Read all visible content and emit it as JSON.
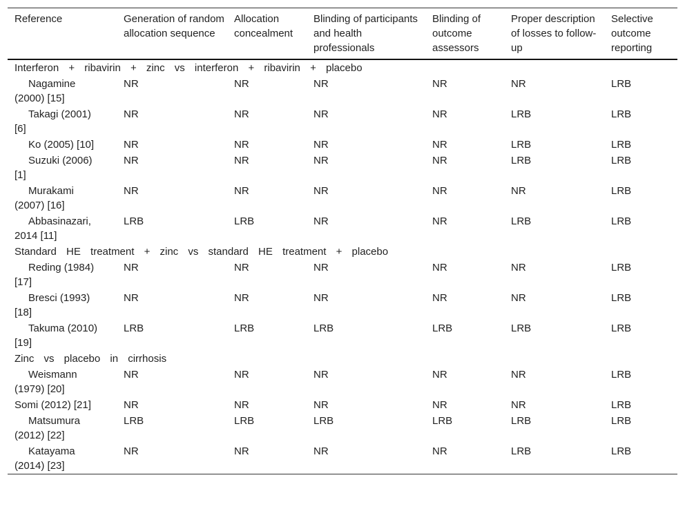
{
  "table": {
    "header": [
      "Reference",
      "Generation of random allocation sequence",
      "Allocation concealment",
      "Blinding of participants and health professionals",
      "Blinding of outcome assessors",
      "Proper description of losses to follow-up",
      "Selective outcome reporting"
    ],
    "groups": [
      {
        "title": "Interferon + ribavirin + zinc vs interferon + ribavirin + placebo",
        "rows": [
          [
            "Nagamine (2000) [15]",
            "NR",
            "NR",
            "NR",
            "NR",
            "NR",
            "LRB"
          ],
          [
            "Takagi (2001) [6]",
            "NR",
            "NR",
            "NR",
            "NR",
            "LRB",
            "LRB"
          ],
          [
            "Ko (2005) [10]",
            "NR",
            "NR",
            "NR",
            "NR",
            "LRB",
            "LRB"
          ],
          [
            "Suzuki (2006) [1]",
            "NR",
            "NR",
            "NR",
            "NR",
            "LRB",
            "LRB"
          ],
          [
            "Murakami (2007) [16]",
            "NR",
            "NR",
            "NR",
            "NR",
            "NR",
            "LRB"
          ],
          [
            "Abbasinazari, 2014 [11]",
            "LRB",
            "LRB",
            "NR",
            "NR",
            "LRB",
            "LRB"
          ]
        ]
      },
      {
        "title": "Standard HE treatment + zinc vs standard HE treatment + placebo",
        "rows": [
          [
            "Reding (1984) [17]",
            "NR",
            "NR",
            "NR",
            "NR",
            "NR",
            "LRB"
          ],
          [
            "Bresci (1993) [18]",
            "NR",
            "NR",
            "NR",
            "NR",
            "NR",
            "LRB"
          ],
          [
            "Takuma (2010) [19]",
            "LRB",
            "LRB",
            "LRB",
            "LRB",
            "LRB",
            "LRB"
          ]
        ]
      },
      {
        "title": "Zinc vs placebo in cirrhosis",
        "rows": [
          [
            "Weismann (1979) [20]",
            "NR",
            "NR",
            "NR",
            "NR",
            "NR",
            "LRB"
          ],
          [
            "Somi (2012) [21]",
            "NR",
            "NR",
            "NR",
            "NR",
            "NR",
            "LRB"
          ],
          [
            "Matsumura (2012) [22]",
            "LRB",
            "LRB",
            "LRB",
            "LRB",
            "LRB",
            "LRB"
          ],
          [
            "Katayama (2014) [23]",
            "NR",
            "NR",
            "NR",
            "NR",
            "LRB",
            "LRB"
          ]
        ]
      }
    ]
  }
}
